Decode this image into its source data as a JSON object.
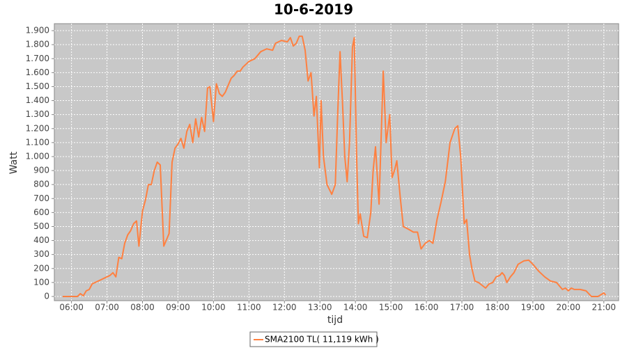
{
  "chart_data": {
    "type": "line",
    "title": "10-6-2019",
    "x_label": "tijd",
    "y_label": "Watt",
    "plot_background": "#c8c8c8",
    "grid": true,
    "legend": "bottom",
    "xlim": [
      "05:31",
      "21:25"
    ],
    "xticks": [
      "06:00",
      "07:00",
      "08:00",
      "09:00",
      "10:00",
      "11:00",
      "12:00",
      "13:00",
      "14:00",
      "15:00",
      "16:00",
      "17:00",
      "18:00",
      "19:00",
      "20:00",
      "21:00"
    ],
    "ylim": [
      -30,
      1950
    ],
    "yticks": [
      0,
      100,
      200,
      300,
      400,
      500,
      600,
      700,
      800,
      900,
      {
        "value": 1000,
        "label": "1.000"
      },
      {
        "value": 1100,
        "label": "1.100"
      },
      {
        "value": 1200,
        "label": "1.200"
      },
      {
        "value": 1300,
        "label": "1.300"
      },
      {
        "value": 1400,
        "label": "1.400"
      },
      {
        "value": 1500,
        "label": "1.500"
      },
      {
        "value": 1600,
        "label": "1.600"
      },
      {
        "value": 1700,
        "label": "1.700"
      },
      {
        "value": 1800,
        "label": "1.800"
      },
      {
        "value": 1900,
        "label": "1.900"
      }
    ],
    "x": [
      "05:45",
      "06:00",
      "06:10",
      "06:15",
      "06:20",
      "06:25",
      "06:30",
      "06:35",
      "06:45",
      "06:55",
      "07:05",
      "07:10",
      "07:15",
      "07:20",
      "07:25",
      "07:30",
      "07:35",
      "07:40",
      "07:45",
      "07:50",
      "07:54",
      "08:00",
      "08:05",
      "08:10",
      "08:15",
      "08:20",
      "08:25",
      "08:30",
      "08:36",
      "08:40",
      "08:45",
      "08:50",
      "08:55",
      "09:00",
      "09:05",
      "09:10",
      "09:15",
      "09:20",
      "09:25",
      "09:30",
      "09:35",
      "09:40",
      "09:45",
      "09:50",
      "09:54",
      "10:00",
      "10:05",
      "10:10",
      "10:15",
      "10:20",
      "10:25",
      "10:30",
      "10:35",
      "10:40",
      "10:45",
      "10:50",
      "10:55",
      "11:00",
      "11:10",
      "11:20",
      "11:30",
      "11:40",
      "11:45",
      "11:55",
      "12:05",
      "12:10",
      "12:15",
      "12:20",
      "12:25",
      "12:30",
      "12:35",
      "12:40",
      "12:45",
      "12:50",
      "12:54",
      "12:59",
      "13:02",
      "13:06",
      "13:12",
      "13:20",
      "13:26",
      "13:30",
      "13:34",
      "13:38",
      "13:42",
      "13:46",
      "13:50",
      "13:55",
      "13:58",
      "14:02",
      "14:05",
      "14:08",
      "14:14",
      "14:20",
      "14:26",
      "14:30",
      "14:34",
      "14:40",
      "14:44",
      "14:47",
      "14:52",
      "14:58",
      "15:02",
      "15:06",
      "15:10",
      "15:16",
      "15:21",
      "15:30",
      "15:38",
      "15:45",
      "15:51",
      "15:58",
      "16:05",
      "16:11",
      "16:18",
      "16:25",
      "16:32",
      "16:40",
      "16:48",
      "16:53",
      "16:58",
      "17:04",
      "17:08",
      "17:13",
      "17:17",
      "17:22",
      "17:28",
      "17:34",
      "17:40",
      "17:46",
      "17:52",
      "17:58",
      "18:04",
      "18:08",
      "18:12",
      "18:16",
      "18:22",
      "18:28",
      "18:35",
      "18:45",
      "18:53",
      "19:00",
      "19:10",
      "19:20",
      "19:30",
      "19:40",
      "19:50",
      "19:55",
      "20:00",
      "20:05",
      "20:10",
      "20:20",
      "20:30",
      "20:39",
      "20:50",
      "21:00",
      "21:03"
    ],
    "series": [
      {
        "name": "SMA2100 TL( 11,119 kWh )",
        "color": "#ff8040",
        "values": [
          0,
          0,
          0,
          20,
          5,
          40,
          50,
          90,
          110,
          130,
          150,
          170,
          140,
          280,
          270,
          380,
          440,
          470,
          520,
          540,
          360,
          610,
          690,
          800,
          800,
          900,
          960,
          940,
          360,
          400,
          450,
          960,
          1060,
          1090,
          1130,
          1060,
          1180,
          1230,
          1100,
          1270,
          1140,
          1280,
          1180,
          1490,
          1500,
          1250,
          1520,
          1450,
          1430,
          1460,
          1510,
          1560,
          1580,
          1610,
          1610,
          1640,
          1660,
          1680,
          1700,
          1750,
          1770,
          1760,
          1810,
          1830,
          1820,
          1850,
          1790,
          1810,
          1860,
          1860,
          1760,
          1540,
          1600,
          1290,
          1430,
          920,
          1400,
          1000,
          800,
          730,
          800,
          1300,
          1750,
          1400,
          1000,
          820,
          1100,
          1780,
          1850,
          1000,
          520,
          590,
          430,
          420,
          600,
          900,
          1070,
          660,
          1200,
          1610,
          1100,
          1300,
          850,
          900,
          970,
          700,
          500,
          480,
          460,
          460,
          340,
          380,
          400,
          380,
          550,
          680,
          820,
          1100,
          1200,
          1220,
          1000,
          520,
          550,
          300,
          200,
          110,
          100,
          80,
          60,
          90,
          100,
          140,
          150,
          170,
          150,
          100,
          140,
          170,
          230,
          255,
          260,
          230,
          180,
          140,
          110,
          100,
          50,
          60,
          40,
          60,
          50,
          50,
          40,
          0,
          0,
          25,
          10
        ]
      }
    ]
  }
}
